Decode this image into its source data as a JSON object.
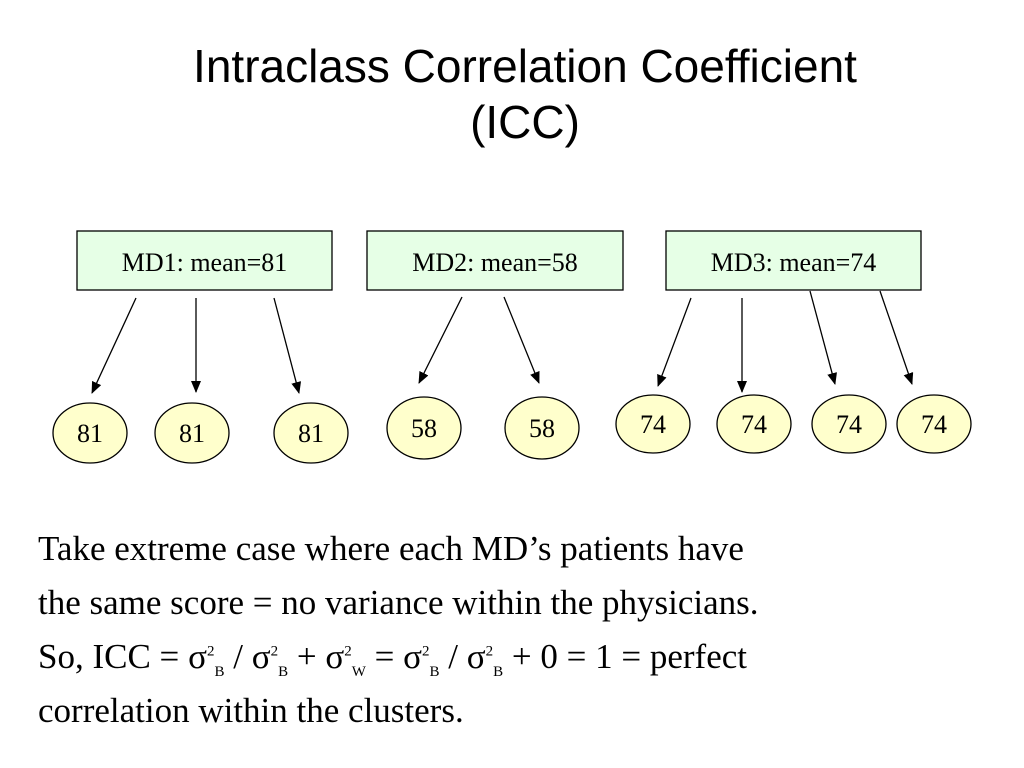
{
  "title": {
    "line1": "Intraclass Correlation Coefficient",
    "line2": "(ICC)"
  },
  "diagram": {
    "box_fill": "#e6ffe6",
    "node_fill": "#ffffcc",
    "groups": [
      {
        "label": "MD1: mean=81",
        "children": [
          "81",
          "81",
          "81"
        ]
      },
      {
        "label": "MD2: mean=58",
        "children": [
          "58",
          "58"
        ]
      },
      {
        "label": "MD3: mean=74",
        "children": [
          "74",
          "74",
          "74",
          "74"
        ]
      }
    ]
  },
  "body": {
    "line1": "Take extreme case where each MD’s patients have",
    "line2": "the same score = no variance within the physicians.",
    "line3": {
      "prefix": "So, ICC = ",
      "sigma": "σ",
      "sq": "2",
      "sub_b": "B",
      "sub_w": "W",
      "slash": " / ",
      "plus": " + ",
      "equals": " = ",
      "suffix": " + 0 = 1 = perfect"
    },
    "line4": "correlation within the clusters."
  }
}
